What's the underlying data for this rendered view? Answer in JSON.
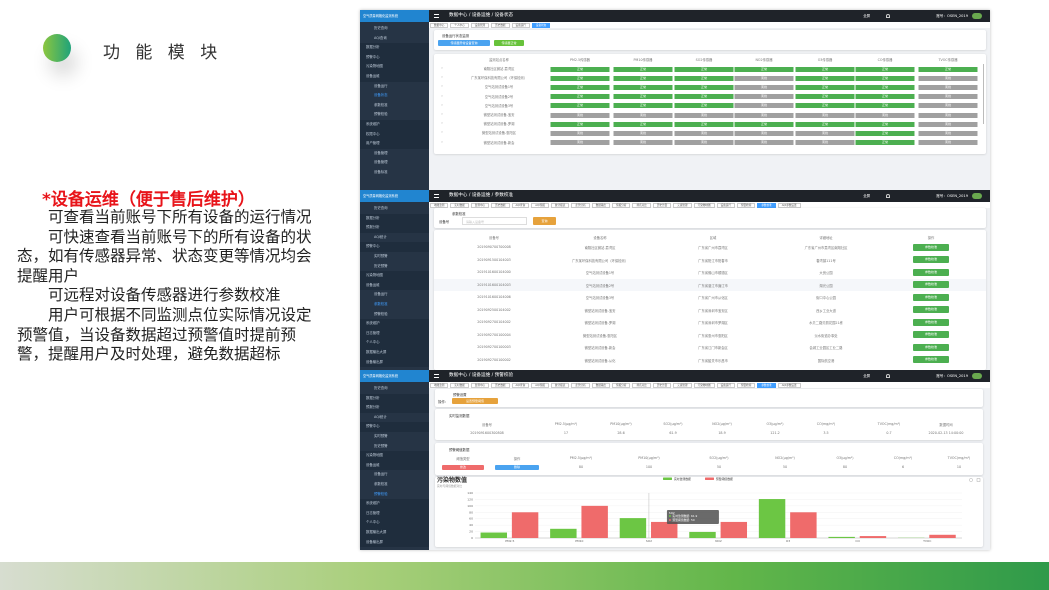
{
  "slide": {
    "title": "功 能 模 块",
    "heading": "*设备运维（便于售后维护）",
    "paragraphs": [
      "可查看当前账号下所有设备的运行情况",
      "可快速查看当前账号下的所有设备的状态，如有传感器异常、状态变更等情况均会提醒用户",
      "可远程对设备传感器进行参数校准",
      "用户可根据不同监测点位实际情况设定预警值，当设备数据超过预警值时提前预警，提醒用户及时处理，避免数据超标"
    ],
    "colors": {
      "heading": "#e8141a",
      "accent": "#4caf50",
      "sidebar": "#263445"
    }
  },
  "app": {
    "logo": "空气质量网格化监测系统",
    "account": "账号：OSEN_2019",
    "fullscreen": "全屏",
    "bell_icon": "bell-icon"
  },
  "shot1": {
    "breadcrumb": "数据中心 / 设备运维 / 设备状态",
    "sidebar": [
      "历史查询",
      "AQI查询",
      "数据分析",
      "预警中心",
      "污染物地图",
      "设备运维",
      "设备运行",
      "设备状态",
      "参数校准",
      "预警校验",
      "系统维护",
      "权限中心",
      "用户管理",
      "设备管理",
      "设备管理",
      "设备标准"
    ],
    "tabs": [
      "数据中心",
      "个人中心",
      "设备管理",
      "历史数据",
      "设备运行",
      "设备状态"
    ],
    "panel_title": "设备运行状态监测",
    "btn_blue": "传感器异常设备查询",
    "btn_green": "传感器正常",
    "columns": [
      "监测站点名称",
      "PM2.5传感器",
      "PM10传感器",
      "SO2传感器",
      "NO2传感器",
      "O3传感器",
      "CO传感器",
      "TVOC传感器"
    ],
    "ok_label": "正常",
    "off_label": "离线",
    "rows": [
      {
        "name": "南翔社区微站-荔湾区",
        "status": [
          1,
          1,
          1,
          1,
          1,
          1,
          1
        ]
      },
      {
        "name": "广东某环保科技有限公司（环保检测）",
        "status": [
          1,
          1,
          1,
          0,
          1,
          1,
          0
        ]
      },
      {
        "name": "空气站测试设备1号",
        "status": [
          1,
          1,
          1,
          0,
          1,
          1,
          0
        ]
      },
      {
        "name": "空气站测试设备2号",
        "status": [
          1,
          1,
          1,
          0,
          1,
          1,
          0
        ]
      },
      {
        "name": "空气站测试设备3号",
        "status": [
          1,
          1,
          1,
          0,
          1,
          1,
          0
        ]
      },
      {
        "name": "微型站测试设备-宝安",
        "status": [
          0,
          0,
          0,
          0,
          0,
          0,
          0
        ]
      },
      {
        "name": "微型站测试设备-罗湖",
        "status": [
          1,
          1,
          1,
          1,
          1,
          1,
          0
        ]
      },
      {
        "name": "微型站测试设备-惠阳区",
        "status": [
          0,
          0,
          0,
          0,
          0,
          1,
          0
        ]
      },
      {
        "name": "微型站测试设备-新会",
        "status": [
          0,
          0,
          0,
          0,
          0,
          1,
          0
        ]
      }
    ]
  },
  "shot2": {
    "breadcrumb": "数据中心 / 设备运维 / 参数校准",
    "sidebar": [
      "历史查询",
      "数据分析",
      "预报分析",
      "AQI统计",
      "预警中心",
      "实时预警",
      "历史预警",
      "污染物地图",
      "设备运维",
      "设备运行",
      "参数校准",
      "预警校验",
      "系统维护",
      "日志管理",
      "个人中心",
      "数据输出大屏",
      "设备输出屏"
    ],
    "tabs": [
      "地图监测",
      "实时数据",
      "监测中心",
      "历史数据",
      "AQI查询",
      "AQI预报",
      "统计报表",
      "走势分析",
      "数据输出",
      "预报分析",
      "排名对比",
      "历史告警",
      "元素管理",
      "污染物地图",
      "设备运行",
      "预警检验",
      "参数校准",
      "AQI参数设置"
    ],
    "panel_title": "参数校准",
    "search_label": "设备号",
    "search_placeholder": "请输入设备号",
    "search_button": "查询",
    "columns": [
      "设备号",
      "设备名称",
      "区域",
      "详细地址",
      "操作"
    ],
    "action": "参数校准",
    "rows": [
      [
        "2019090700700008",
        "南翔社区微站-荔湾区",
        "广东省广州市荔湾区",
        "广东省广州市荔湾区南翔社区"
      ],
      [
        "2019091500104003",
        "广东某环保科技有限公司（环保检测）",
        "广东省阳江市阳春市",
        "春湾镇111号"
      ],
      [
        "2019101600104000",
        "空气站测试设备1号",
        "广东省佛山市顺德区",
        "大良公园"
      ],
      [
        "2019101600104003",
        "空气站测试设备2号",
        "广东省湛江市廉江市",
        "湖光公园"
      ],
      [
        "2019101600104006",
        "空气站测试设备3号",
        "广东省广州市从化区",
        "街口中心公园"
      ],
      [
        "2019092500104002",
        "微型站测试设备-宝安",
        "广东省深圳市宝安区",
        "西乡工业大道"
      ],
      [
        "2019092700104002",
        "微型站测试设备-罗湖",
        "广东省深圳市罗湖区",
        "水贝二路贝丽花园21栋"
      ],
      [
        "2019092700100004",
        "微型站测试设备-惠阳区",
        "广东省惠州市惠阳区",
        "淡水街道办事处"
      ],
      [
        "2019092700100003",
        "微型站测试设备-新会",
        "广东省江门市新会区",
        "会城工业园区工业二路"
      ],
      [
        "2019092700100002",
        "微型站测试设备-从化",
        "广东省韶关市乐昌市",
        "国际航空港"
      ]
    ]
  },
  "shot3": {
    "breadcrumb": "数据中心 / 设备运维 / 预警校验",
    "sidebar": [
      "历史查询",
      "数据分析",
      "预报分析",
      "AQI统计",
      "预警中心",
      "实时预警",
      "历史预警",
      "污染物地图",
      "设备运维",
      "设备运行",
      "参数校准",
      "预警校验",
      "系统维护",
      "日志管理",
      "个人中心",
      "数据输出大屏",
      "设备输出屏"
    ],
    "tabs": [
      "地图监测",
      "实时数据",
      "监测中心",
      "历史数据",
      "AQI查询",
      "AQI预报",
      "统计报表",
      "走势分析",
      "数据输出",
      "预报分析",
      "排名对比",
      "历史告警",
      "元素管理",
      "污染物地图",
      "设备运行",
      "预警检验",
      "参数校准",
      "AQI参数设置"
    ],
    "warn_title": "预警设置",
    "op_label": "操作:",
    "set_button": "设置预警阈值",
    "realtime_title": "实时监测数据",
    "realtime_columns": [
      "设备号",
      "PM2.5(μg/m³)",
      "PM10(μg/m³)",
      "SO2(μg/m³)",
      "NO2(μg/m³)",
      "O3(μg/m³)",
      "CO(mg/m³)",
      "TVOC(mg/m³)",
      "数据时间"
    ],
    "realtime_values": [
      "2019091600300808",
      "17",
      "28.6",
      "61.9",
      "18.9",
      "121.2",
      "3.5",
      "0.7",
      "2020-02-13 14:00:00"
    ],
    "threshold_title": "预警阈值数据",
    "threshold_columns": [
      "阈值类型",
      "操作",
      "PM2.5(μg/m³)",
      "PM10(μg/m³)",
      "SO2(μg/m³)",
      "NO2(μg/m³)",
      "O3(μg/m³)",
      "CO(mg/m³)",
      "TVOC(mg/m³)"
    ],
    "btn_edit": "修改",
    "btn_delete": "删除",
    "threshold_values": [
      "80",
      "100",
      "50",
      "50",
      "80",
      "6",
      "10"
    ]
  },
  "chart_data": {
    "type": "bar",
    "title": "污染物数值",
    "subtitle": "实时与阈值数据对比",
    "categories": [
      "PM2.5",
      "PM10",
      "SO2",
      "NO2",
      "O3",
      "CO",
      "TVOC"
    ],
    "series": [
      {
        "name": "实时监测数据",
        "color": "#6cc644",
        "values": [
          17,
          28.6,
          61.9,
          18.9,
          121.2,
          3.5,
          0.7
        ]
      },
      {
        "name": "预警阈值数据",
        "color": "#ef6b6b",
        "values": [
          80,
          100,
          50,
          50,
          80,
          6,
          10
        ]
      }
    ],
    "ylim": [
      0,
      140
    ],
    "yticks": [
      0,
      20,
      40,
      60,
      80,
      100,
      120,
      140
    ],
    "grid": true,
    "legend": "top-center",
    "tooltip": {
      "title": "SO2",
      "lines": [
        "实时监测数据: 61.9",
        "预警阈值数据: 50"
      ]
    }
  }
}
